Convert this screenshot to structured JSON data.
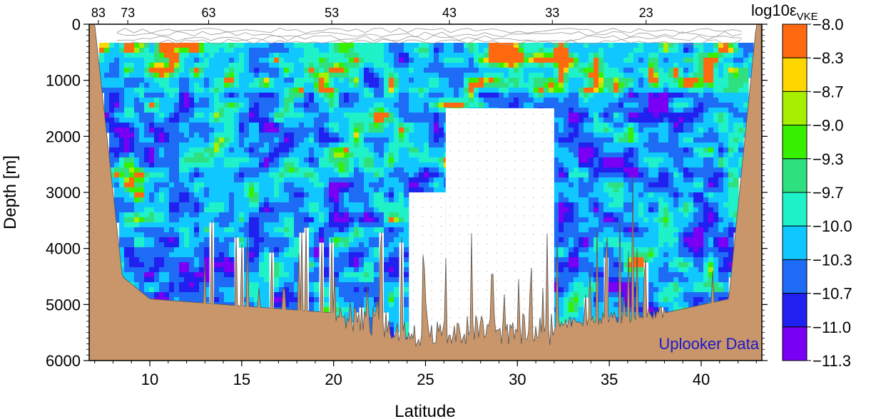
{
  "chart_data": {
    "type": "heatmap",
    "xlabel": "Latitude",
    "ylabel": "Depth [m]",
    "xlim": [
      6.7,
      43.3
    ],
    "ylim": [
      6000,
      0
    ],
    "x_ticks": [
      "10",
      "15",
      "20",
      "25",
      "30",
      "35",
      "40"
    ],
    "x_tick_values": [
      10,
      15,
      20,
      25,
      30,
      35,
      40
    ],
    "y_ticks": [
      "0",
      "1000",
      "2000",
      "3000",
      "4000",
      "5000",
      "6000"
    ],
    "y_tick_values": [
      0,
      1000,
      2000,
      3000,
      4000,
      5000,
      6000
    ],
    "top_ticks": [
      "83",
      "73",
      "63",
      "53",
      "43",
      "33",
      "23"
    ],
    "top_tick_latitudes": [
      7.2,
      8.8,
      13.2,
      19.9,
      26.3,
      31.9,
      37.0
    ],
    "colorbar": {
      "title": "log10ε",
      "title_subscript": "VKE",
      "labels": [
        "-8.0",
        "-8.3",
        "-8.7",
        "-9.0",
        "-9.3",
        "-9.7",
        "-10.0",
        "-10.3",
        "-10.7",
        "-11.0",
        "-11.3"
      ],
      "colors": [
        "#ff6a10",
        "#ffd700",
        "#a6ef00",
        "#37f000",
        "#2fe07f",
        "#1ff2c8",
        "#10c8ff",
        "#1e6cf5",
        "#2020f0",
        "#7a00f5"
      ]
    },
    "data_gap": {
      "lat_ranges": [
        [
          24.1,
          26.1
        ],
        [
          26.1,
          32.0
        ]
      ],
      "depth_top": [
        3000,
        1500
      ]
    },
    "annotation": "Uplooker Data",
    "colors": {
      "bathymetry": "#c8966a",
      "grid_lines": "#9a9a9a"
    }
  }
}
